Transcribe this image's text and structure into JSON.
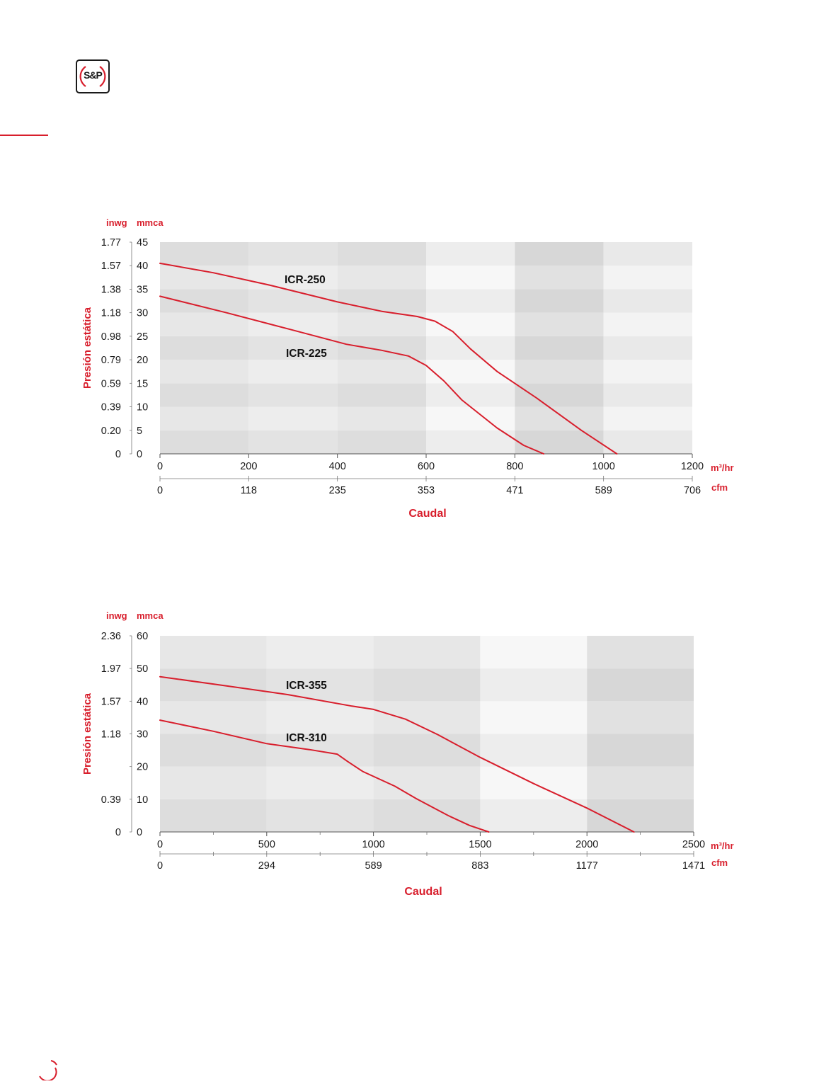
{
  "brand": {
    "logo_text": "S&P",
    "accent_color": "#d81e2c"
  },
  "chart_data": [
    {
      "type": "line",
      "ylabel": "Presión estática",
      "xlabel": "Caudal",
      "y_units": {
        "left": "inwg",
        "right": "mmca"
      },
      "x_units": {
        "primary": "m³/hr",
        "secondary": "cfm"
      },
      "xlim": [
        0,
        1200
      ],
      "ylim": [
        0,
        45
      ],
      "x_ticks": [
        0,
        200,
        400,
        600,
        800,
        1000,
        1200
      ],
      "x_secondary_ticks": [
        "0",
        "118",
        "235",
        "353",
        "471",
        "589",
        "706"
      ],
      "y_ticks": [
        0,
        5,
        10,
        15,
        20,
        25,
        30,
        35,
        40,
        45
      ],
      "y_secondary_ticks": [
        "0",
        "0.20",
        "0.39",
        "0.59",
        "0.79",
        "0.98",
        "1.18",
        "1.38",
        "1.57",
        "1.77"
      ],
      "series": [
        {
          "name": "ICR-250",
          "x": [
            0,
            120,
            250,
            400,
            500,
            580,
            620,
            660,
            700,
            760,
            850,
            950,
            1030
          ],
          "y": [
            40.5,
            38.5,
            35.8,
            32.3,
            30.3,
            29.2,
            28.2,
            26.0,
            22.3,
            17.5,
            11.8,
            5.0,
            0
          ]
        },
        {
          "name": "ICR-225",
          "x": [
            0,
            150,
            300,
            420,
            500,
            560,
            600,
            640,
            680,
            760,
            820,
            865
          ],
          "y": [
            33.5,
            30.0,
            26.3,
            23.3,
            22.0,
            20.8,
            18.8,
            15.5,
            11.5,
            5.5,
            1.8,
            0
          ]
        }
      ]
    },
    {
      "type": "line",
      "ylabel": "Presión estática",
      "xlabel": "Caudal",
      "y_units": {
        "left": "inwg",
        "right": "mmca"
      },
      "x_units": {
        "primary": "m³/hr",
        "secondary": "cfm"
      },
      "xlim": [
        0,
        2500
      ],
      "ylim": [
        0,
        60
      ],
      "x_ticks": [
        0,
        500,
        1000,
        1500,
        2000,
        2500
      ],
      "x_secondary_ticks": [
        "0",
        "294",
        "589",
        "883",
        "1177",
        "1471"
      ],
      "y_ticks": [
        0,
        10,
        20,
        30,
        40,
        50,
        60
      ],
      "y_secondary_ticks": [
        "0",
        "0.39",
        "1.18",
        "1.57",
        "1.97",
        "2.36"
      ],
      "y_secondary_tick_values": [
        0,
        10,
        30,
        40,
        50,
        60
      ],
      "series": [
        {
          "name": "ICR-355",
          "x": [
            0,
            300,
            600,
            900,
            1000,
            1150,
            1300,
            1500,
            1750,
            2000,
            2220
          ],
          "y": [
            47.5,
            44.8,
            42.0,
            38.5,
            37.5,
            34.5,
            29.8,
            22.8,
            14.8,
            7.3,
            0
          ]
        },
        {
          "name": "ICR-310",
          "x": [
            0,
            250,
            500,
            700,
            830,
            880,
            950,
            1100,
            1200,
            1350,
            1450,
            1540
          ],
          "y": [
            34.2,
            30.8,
            27.0,
            25.2,
            23.8,
            21.5,
            18.5,
            14.0,
            10.2,
            5.0,
            2.0,
            0
          ]
        }
      ]
    }
  ]
}
